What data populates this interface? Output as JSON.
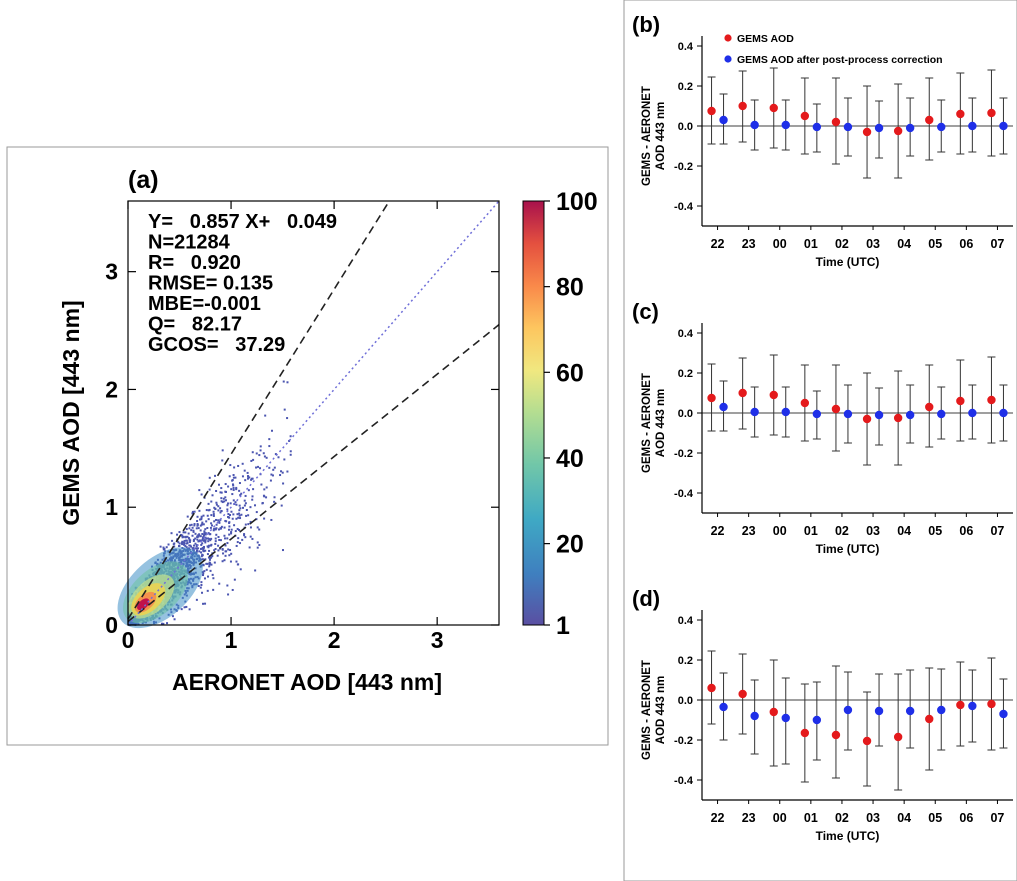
{
  "chart_data": [
    {
      "panel_label": "(a)",
      "type": "heatmap",
      "xlabel": "AERONET AOD [443 nm]",
      "ylabel": "GEMS AOD [443 nm]",
      "xlim": [
        0,
        3.6
      ],
      "ylim": [
        0,
        3.6
      ],
      "x_ticks": [
        0,
        1,
        2,
        3
      ],
      "y_ticks": [
        0,
        1,
        2,
        3
      ],
      "stats": [
        "Y=   0.857 X+   0.049",
        "N=21284",
        "R=   0.920",
        "RMSE= 0.135",
        "MBE=-0.001",
        "Q=   82.17",
        "GCOS=   37.29"
      ],
      "slope": 0.857,
      "intercept": 0.049,
      "count": 21284,
      "dashed_envelope_lines": [
        {
          "slope": 1.4,
          "intercept": 0.05
        },
        {
          "slope": 0.7,
          "intercept": 0.03
        }
      ],
      "colorbar": {
        "ticks": [
          1,
          20,
          40,
          60,
          80,
          100
        ],
        "range": [
          1,
          100
        ]
      },
      "colors": {
        "point": "#4b55b0",
        "dense_low": "#3d8fc4",
        "dense_mid": "#f4d34a",
        "dense_high": "#c0124a",
        "dotted_line": "#6f6fd8"
      }
    },
    {
      "panel_label": "(b)",
      "type": "scatter",
      "xlabel": "Time (UTC)",
      "ylabel": [
        "GEMS - AERONET",
        "AOD 443 nm"
      ],
      "ylim": [
        -0.5,
        0.45
      ],
      "y_ticks": [
        "0.4",
        "0.2",
        "0.0",
        "-0.2",
        "-0.4"
      ],
      "categories": [
        "22",
        "23",
        "00",
        "01",
        "02",
        "03",
        "04",
        "05",
        "06",
        "07"
      ],
      "legend": [
        "GEMS AOD",
        "GEMS AOD after post-process correction"
      ],
      "series": [
        {
          "name": "GEMS AOD",
          "color": "#e41a1c",
          "values": [
            0.075,
            0.1,
            0.09,
            0.05,
            0.02,
            -0.03,
            -0.025,
            0.03,
            0.06,
            0.065
          ],
          "err_high": [
            0.245,
            0.275,
            0.29,
            0.24,
            0.24,
            0.2,
            0.21,
            0.24,
            0.265,
            0.28
          ],
          "err_low": [
            -0.09,
            -0.08,
            -0.11,
            -0.14,
            -0.19,
            -0.26,
            -0.26,
            -0.17,
            -0.14,
            -0.15
          ]
        },
        {
          "name": "GEMS AOD after post-process correction",
          "color": "#1f2fe8",
          "values": [
            0.03,
            0.005,
            0.005,
            -0.005,
            -0.005,
            -0.01,
            -0.01,
            -0.005,
            0.0,
            0.0
          ],
          "err_high": [
            0.16,
            0.13,
            0.13,
            0.11,
            0.14,
            0.125,
            0.14,
            0.13,
            0.14,
            0.14
          ],
          "err_low": [
            -0.09,
            -0.12,
            -0.12,
            -0.13,
            -0.15,
            -0.16,
            -0.15,
            -0.13,
            -0.13,
            -0.14
          ]
        }
      ]
    },
    {
      "panel_label": "(c)",
      "type": "scatter",
      "xlabel": "Time (UTC)",
      "ylabel": [
        "GEMS - AERONET",
        "AOD 443 nm"
      ],
      "ylim": [
        -0.5,
        0.45
      ],
      "y_ticks": [
        "0.4",
        "0.2",
        "0.0",
        "-0.2",
        "-0.4"
      ],
      "categories": [
        "22",
        "23",
        "00",
        "01",
        "02",
        "03",
        "04",
        "05",
        "06",
        "07"
      ],
      "series": [
        {
          "name": "GEMS AOD",
          "color": "#e41a1c",
          "values": [
            0.075,
            0.1,
            0.09,
            0.05,
            0.02,
            -0.03,
            -0.025,
            0.03,
            0.06,
            0.065
          ],
          "err_high": [
            0.245,
            0.275,
            0.29,
            0.24,
            0.24,
            0.2,
            0.21,
            0.24,
            0.265,
            0.28
          ],
          "err_low": [
            -0.09,
            -0.08,
            -0.11,
            -0.14,
            -0.19,
            -0.26,
            -0.26,
            -0.17,
            -0.14,
            -0.15
          ]
        },
        {
          "name": "GEMS AOD after post-process correction",
          "color": "#1f2fe8",
          "values": [
            0.03,
            0.005,
            0.005,
            -0.005,
            -0.005,
            -0.01,
            -0.01,
            -0.005,
            0.0,
            0.0
          ],
          "err_high": [
            0.16,
            0.13,
            0.13,
            0.11,
            0.14,
            0.125,
            0.14,
            0.13,
            0.14,
            0.14
          ],
          "err_low": [
            -0.09,
            -0.12,
            -0.12,
            -0.13,
            -0.15,
            -0.16,
            -0.15,
            -0.13,
            -0.13,
            -0.14
          ]
        }
      ]
    },
    {
      "panel_label": "(d)",
      "type": "scatter",
      "xlabel": "Time (UTC)",
      "ylabel": [
        "GEMS - AERONET",
        "AOD 443 nm"
      ],
      "ylim": [
        -0.5,
        0.45
      ],
      "y_ticks": [
        "0.4",
        "0.2",
        "0.0",
        "-0.2",
        "-0.4"
      ],
      "categories": [
        "22",
        "23",
        "00",
        "01",
        "02",
        "03",
        "04",
        "05",
        "06",
        "07"
      ],
      "series": [
        {
          "name": "GEMS AOD",
          "color": "#e41a1c",
          "values": [
            0.06,
            0.03,
            -0.06,
            -0.165,
            -0.175,
            -0.205,
            -0.185,
            -0.095,
            -0.025,
            -0.02
          ],
          "err_high": [
            0.245,
            0.23,
            0.2,
            0.08,
            0.17,
            0.04,
            0.13,
            0.16,
            0.19,
            0.21
          ],
          "err_low": [
            -0.12,
            -0.17,
            -0.33,
            -0.41,
            -0.39,
            -0.43,
            -0.45,
            -0.35,
            -0.23,
            -0.25
          ]
        },
        {
          "name": "GEMS AOD after post-process correction",
          "color": "#1f2fe8",
          "values": [
            -0.035,
            -0.08,
            -0.09,
            -0.1,
            -0.05,
            -0.055,
            -0.055,
            -0.05,
            -0.03,
            -0.07
          ],
          "err_high": [
            0.135,
            0.1,
            0.11,
            0.09,
            0.14,
            0.13,
            0.15,
            0.155,
            0.15,
            0.105
          ],
          "err_low": [
            -0.2,
            -0.27,
            -0.32,
            -0.3,
            -0.25,
            -0.23,
            -0.24,
            -0.25,
            -0.21,
            -0.24
          ]
        }
      ]
    }
  ]
}
